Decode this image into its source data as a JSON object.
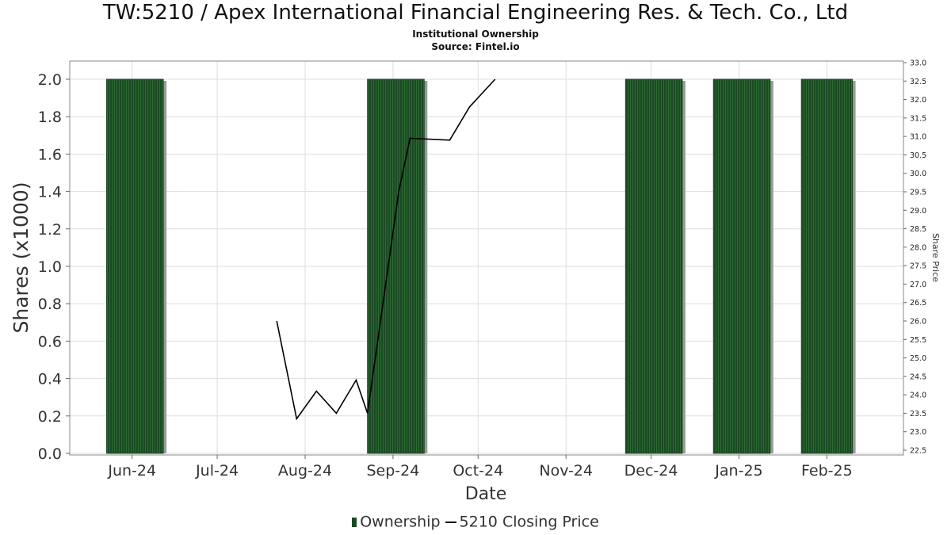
{
  "header": {
    "title": "TW:5210 / Apex International Financial Engineering Res. & Tech. Co., Ltd",
    "subtitle": "Institutional Ownership",
    "source": "Source: Fintel.io"
  },
  "legend": {
    "ownership": "Ownership",
    "price": "5210 Closing Price"
  },
  "colors": {
    "bar_fill": "#1a4a22",
    "bar_stripe": "#2f6b35",
    "bar_shadow": "#9a9a9a",
    "line": "#000000",
    "grid": "#dddddd"
  },
  "chart_data": {
    "type": "bar",
    "xlabel": "Date",
    "ylabel": "Shares (x1000)",
    "y2label": "Share Price",
    "x_range": [
      "2024-05-10",
      "2025-02-28"
    ],
    "ylim": [
      0,
      2.1
    ],
    "y2lim": [
      22.4,
      33.0
    ],
    "y_ticks": [
      0.0,
      0.2,
      0.4,
      0.6,
      0.8,
      1.0,
      1.2,
      1.4,
      1.6,
      1.8,
      2.0
    ],
    "y2_ticks": [
      22.5,
      23.0,
      23.5,
      24.0,
      24.5,
      25.0,
      25.5,
      26.0,
      26.5,
      27.0,
      27.5,
      28.0,
      28.5,
      29.0,
      29.5,
      30.0,
      30.5,
      31.0,
      31.5,
      32.0,
      32.5,
      33.0
    ],
    "x_ticks": [
      {
        "date": "2024-06-01",
        "label": "Jun-24"
      },
      {
        "date": "2024-07-01",
        "label": "Jul-24"
      },
      {
        "date": "2024-08-01",
        "label": "Aug-24"
      },
      {
        "date": "2024-09-01",
        "label": "Sep-24"
      },
      {
        "date": "2024-10-01",
        "label": "Oct-24"
      },
      {
        "date": "2024-11-01",
        "label": "Nov-24"
      },
      {
        "date": "2024-12-01",
        "label": "Dec-24"
      },
      {
        "date": "2025-01-01",
        "label": "Jan-25"
      },
      {
        "date": "2025-02-01",
        "label": "Feb-25"
      }
    ],
    "grid": true,
    "legend_position": "bottom",
    "series": [
      {
        "name": "Ownership",
        "type": "bar",
        "bars": [
          {
            "start": "2024-05-23",
            "end": "2024-06-12",
            "value": 2.0
          },
          {
            "start": "2024-08-23",
            "end": "2024-09-12",
            "value": 2.0
          },
          {
            "start": "2024-11-22",
            "end": "2024-12-12",
            "value": 2.0
          },
          {
            "start": "2024-12-23",
            "end": "2025-01-12",
            "value": 2.0
          },
          {
            "start": "2025-01-23",
            "end": "2025-02-10",
            "value": 2.0
          }
        ]
      },
      {
        "name": "5210 Closing Price",
        "type": "line",
        "axis": "right",
        "points": [
          {
            "date": "2024-07-22",
            "value": 26.0
          },
          {
            "date": "2024-07-29",
            "value": 23.35
          },
          {
            "date": "2024-08-05",
            "value": 24.1
          },
          {
            "date": "2024-08-12",
            "value": 23.5
          },
          {
            "date": "2024-08-19",
            "value": 24.4
          },
          {
            "date": "2024-08-23",
            "value": 23.5
          },
          {
            "date": "2024-09-03",
            "value": 29.5
          },
          {
            "date": "2024-09-07",
            "value": 30.95
          },
          {
            "date": "2024-09-21",
            "value": 30.9
          },
          {
            "date": "2024-09-28",
            "value": 31.8
          },
          {
            "date": "2024-10-07",
            "value": 32.55
          }
        ]
      }
    ]
  }
}
